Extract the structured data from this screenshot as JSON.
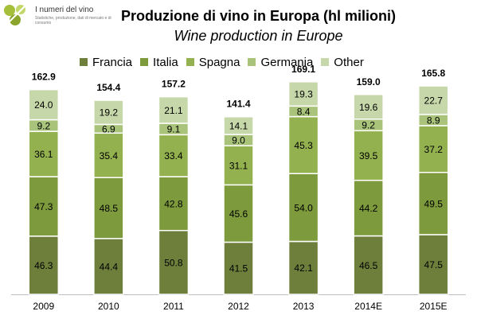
{
  "logo": {
    "title": "I numeri del vino",
    "subtitle": "Statistiche, produzione, dati di mercato e di consumo"
  },
  "chart_data": {
    "type": "bar",
    "stacked": true,
    "title": "Produzione di vino in Europa (hl milioni)",
    "subtitle": "Wine production in Europe",
    "legend_position": "top",
    "categories": [
      "2009",
      "2010",
      "2011",
      "2012",
      "2013",
      "2014E",
      "2015E"
    ],
    "series": [
      {
        "name": "Francia",
        "color": "#6e7f3c",
        "values": [
          46.3,
          44.4,
          50.8,
          41.5,
          42.1,
          46.5,
          47.5
        ]
      },
      {
        "name": "Italia",
        "color": "#7d9a3c",
        "values": [
          47.3,
          48.5,
          42.8,
          45.6,
          54.0,
          44.2,
          49.5
        ]
      },
      {
        "name": "Spagna",
        "color": "#93b14f",
        "values": [
          36.1,
          35.4,
          33.4,
          31.1,
          45.3,
          39.5,
          37.2
        ]
      },
      {
        "name": "Germania",
        "color": "#a9c47a",
        "values": [
          9.2,
          6.9,
          9.1,
          9.0,
          8.4,
          9.2,
          8.9
        ]
      },
      {
        "name": "Other",
        "color": "#c6d8a9",
        "values": [
          24.0,
          19.2,
          21.1,
          14.1,
          19.3,
          19.6,
          22.7
        ]
      }
    ],
    "totals": [
      162.9,
      154.4,
      157.2,
      141.4,
      169.1,
      159.0,
      165.8
    ],
    "value_labels": [
      [
        "46.3",
        "47.3",
        "36.1",
        "9.2",
        "24.0"
      ],
      [
        "44.4",
        "48.5",
        "35.4",
        "6.9",
        "19.2"
      ],
      [
        "50.8",
        "42.8",
        "33.4",
        "9.1",
        "21.1"
      ],
      [
        "41.5",
        "45.6",
        "31.1",
        "9.0",
        "14.1"
      ],
      [
        "42.1",
        "54.0",
        "45.3",
        "8.4",
        "19.3"
      ],
      [
        "46.5",
        "44.2",
        "39.5",
        "9.2",
        "19.6"
      ],
      [
        "47.5",
        "49.5",
        "37.2",
        "8.9",
        "22.7"
      ]
    ],
    "total_labels": [
      "162.9",
      "154.4",
      "157.2",
      "141.4",
      "169.1",
      "159.0",
      "165.8"
    ],
    "ylim": [
      0,
      175
    ],
    "grid": false
  }
}
